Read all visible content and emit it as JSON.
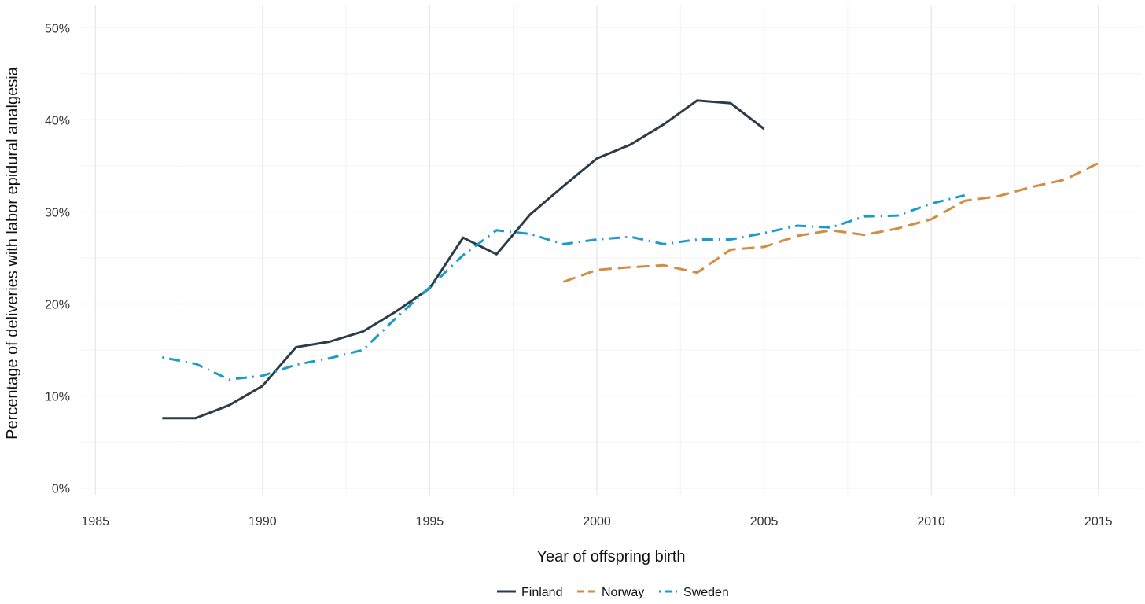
{
  "chart_data": {
    "type": "line",
    "title": "",
    "xlabel": "Year of offspring birth",
    "ylabel": "Percentage of deliveries with labor epidural analgesia",
    "xlim": [
      1984.5,
      2016.3
    ],
    "ylim": [
      -0.8,
      52.5
    ],
    "x_ticks": [
      1985,
      1990,
      1995,
      2000,
      2005,
      2010,
      2015
    ],
    "x_tick_labels": [
      "1985",
      "1990",
      "1995",
      "2000",
      "2005",
      "2010",
      "2015"
    ],
    "x_minor_ticks": [
      1987.5,
      1992.5,
      1997.5,
      2002.5,
      2007.5,
      2012.5
    ],
    "y_ticks": [
      0,
      10,
      20,
      30,
      40,
      50
    ],
    "y_tick_labels": [
      "0%",
      "10%",
      "20%",
      "30%",
      "40%",
      "50%"
    ],
    "y_minor_ticks": [
      5,
      15,
      25,
      35,
      45
    ],
    "grid": true,
    "legend_position": "bottom",
    "series": [
      {
        "name": "Finland",
        "color": "#2b3d4a",
        "dash": "solid",
        "x": [
          1987,
          1988,
          1989,
          1990,
          1991,
          1992,
          1993,
          1994,
          1995,
          1996,
          1997,
          1998,
          1999,
          2000,
          2001,
          2002,
          2003,
          2004,
          2005
        ],
        "y": [
          7.6,
          7.6,
          9.0,
          11.1,
          15.3,
          15.9,
          17.0,
          19.2,
          21.7,
          27.2,
          25.4,
          29.7,
          32.8,
          35.8,
          37.3,
          39.5,
          42.1,
          41.8,
          39.0
        ]
      },
      {
        "name": "Norway",
        "color": "#d38c43",
        "dash": "dashed",
        "x": [
          1999,
          2000,
          2001,
          2002,
          2003,
          2004,
          2005,
          2006,
          2007,
          2008,
          2009,
          2010,
          2011,
          2012,
          2013,
          2014,
          2015
        ],
        "y": [
          22.4,
          23.7,
          24.0,
          24.2,
          23.4,
          25.9,
          26.2,
          27.4,
          28.0,
          27.5,
          28.2,
          29.2,
          31.2,
          31.7,
          32.7,
          33.5,
          35.3
        ]
      },
      {
        "name": "Sweden",
        "color": "#1a9bc9",
        "dash": "dotdash",
        "x": [
          1987,
          1988,
          1989,
          1990,
          1991,
          1992,
          1993,
          1994,
          1995,
          1996,
          1997,
          1998,
          1999,
          2000,
          2001,
          2002,
          2003,
          2004,
          2005,
          2006,
          2007,
          2008,
          2009,
          2010,
          2011
        ],
        "y": [
          14.2,
          13.5,
          11.8,
          12.2,
          13.4,
          14.1,
          15.0,
          18.5,
          21.8,
          25.3,
          28.0,
          27.6,
          26.5,
          27.0,
          27.3,
          26.5,
          27.0,
          27.0,
          27.7,
          28.5,
          28.3,
          29.5,
          29.6,
          30.9,
          31.8
        ]
      }
    ]
  }
}
